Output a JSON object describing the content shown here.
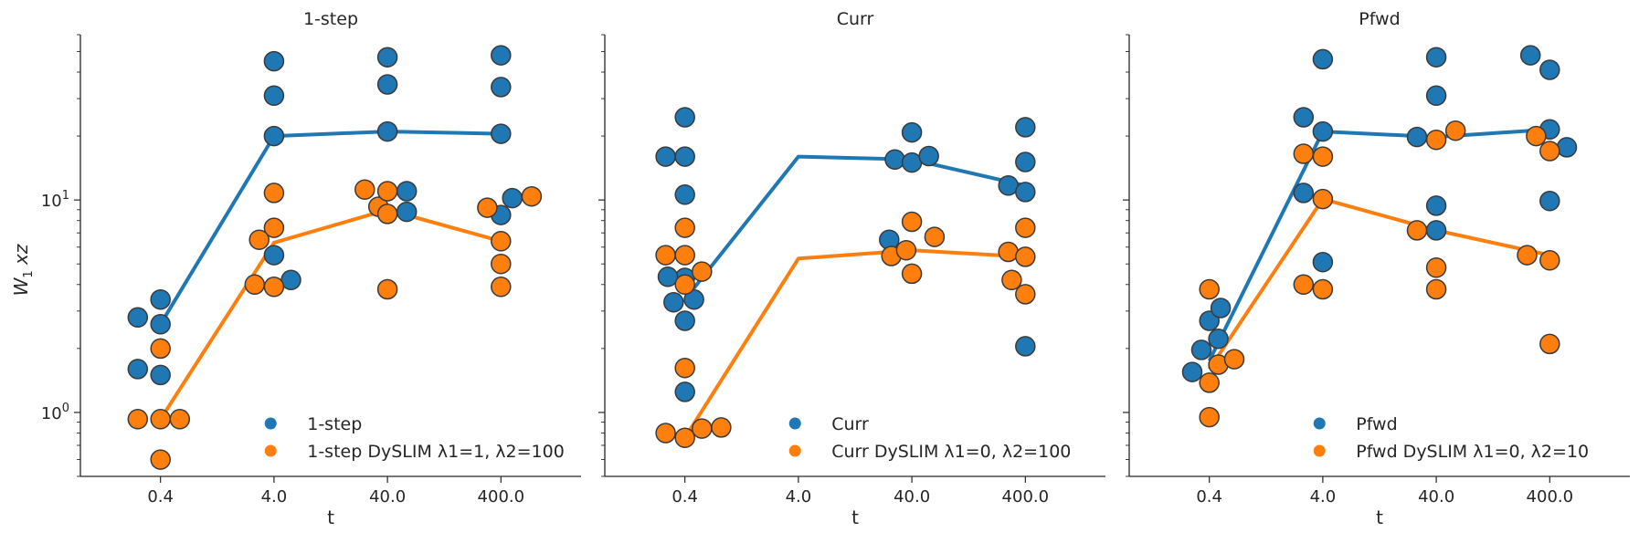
{
  "ylabel_main": "W",
  "ylabel_sub": "1",
  "ylabel_tail": " xz",
  "colors": {
    "blue": "#1f77b4",
    "orange": "#ff7f0e",
    "edge": "#3a3a3a",
    "axis": "#262626"
  },
  "chart_data": [
    {
      "type": "scatter",
      "title": "1-step",
      "xlabel": "t",
      "x_categories": [
        "0.4",
        "4.0",
        "40.0",
        "400.0"
      ],
      "y_scale": "log",
      "ylim": [
        0.5,
        60
      ],
      "y_ticks": [
        {
          "value": 1,
          "base": "10",
          "exp": "0"
        },
        {
          "value": 10,
          "base": "10",
          "exp": "1"
        }
      ],
      "legend_position": "lower-right",
      "series": [
        {
          "name": "1-step",
          "color": "#1f77b4",
          "points": [
            [
              -0.2,
              2.8
            ],
            [
              -0.2,
              1.6
            ],
            [
              0,
              3.4
            ],
            [
              0,
              2.6
            ],
            [
              0,
              1.5
            ],
            [
              1,
              45
            ],
            [
              1,
              31
            ],
            [
              1,
              20
            ],
            [
              1,
              5.5
            ],
            [
              1.15,
              4.2
            ],
            [
              2,
              47
            ],
            [
              2,
              35
            ],
            [
              2,
              21
            ],
            [
              2.17,
              11
            ],
            [
              2.17,
              8.8
            ],
            [
              3,
              48
            ],
            [
              3,
              34
            ],
            [
              3,
              20.5
            ],
            [
              3,
              8.5
            ],
            [
              3.1,
              10.2
            ]
          ],
          "line": [
            [
              0,
              2.6
            ],
            [
              1,
              20
            ],
            [
              2,
              21
            ],
            [
              3,
              20.5
            ]
          ]
        },
        {
          "name": "1-step DySLIM λ1=1, λ2=100",
          "color": "#ff7f0e",
          "points": [
            [
              -0.2,
              0.93
            ],
            [
              0,
              2.0
            ],
            [
              0,
              0.93
            ],
            [
              0,
              0.6
            ],
            [
              0.17,
              0.93
            ],
            [
              1,
              10.8
            ],
            [
              1,
              7.4
            ],
            [
              0.87,
              6.5
            ],
            [
              0.83,
              4.0
            ],
            [
              1,
              3.9
            ],
            [
              1.8,
              11.2
            ],
            [
              1.92,
              9.3
            ],
            [
              2,
              11
            ],
            [
              2,
              8.6
            ],
            [
              2,
              3.8
            ],
            [
              2.88,
              9.2
            ],
            [
              3,
              6.4
            ],
            [
              3,
              5.0
            ],
            [
              3,
              3.9
            ],
            [
              3.27,
              10.4
            ]
          ],
          "line": [
            [
              0,
              0.93
            ],
            [
              1,
              6.3
            ],
            [
              2,
              9.0
            ],
            [
              3,
              6.4
            ]
          ]
        }
      ]
    },
    {
      "type": "scatter",
      "title": "Curr",
      "xlabel": "t",
      "x_categories": [
        "0.4",
        "4.0",
        "40.0",
        "400.0"
      ],
      "y_scale": "log",
      "ylim": [
        0.5,
        60
      ],
      "legend_position": "lower-right",
      "series": [
        {
          "name": "Curr",
          "color": "#1f77b4",
          "points": [
            [
              -0.1,
              3.3
            ],
            [
              0,
              4.3
            ],
            [
              0.08,
              3.4
            ],
            [
              0,
              2.7
            ],
            [
              0,
              1.25
            ],
            [
              -0.17,
              16
            ],
            [
              0,
              16
            ],
            [
              0,
              24.5
            ],
            [
              0,
              10.6
            ],
            [
              -0.15,
              4.35
            ],
            [
              1.85,
              15.5
            ],
            [
              2,
              15
            ],
            [
              2,
              20.8
            ],
            [
              2.15,
              16.1
            ],
            [
              1.8,
              6.5
            ],
            [
              2.85,
              11.7
            ],
            [
              3,
              22
            ],
            [
              3,
              15.1
            ],
            [
              3,
              10.9
            ],
            [
              3,
              2.05
            ]
          ],
          "line": [
            [
              0,
              3.4
            ],
            [
              1,
              16
            ],
            [
              2,
              15.5
            ],
            [
              3,
              11.7
            ]
          ]
        },
        {
          "name": "Curr DySLIM λ1=0, λ2=100",
          "color": "#ff7f0e",
          "points": [
            [
              -0.17,
              0.8
            ],
            [
              0,
              0.76
            ],
            [
              0,
              1.62
            ],
            [
              0.15,
              0.84
            ],
            [
              0.32,
              0.85
            ],
            [
              -0.17,
              5.5
            ],
            [
              0,
              5.5
            ],
            [
              0,
              7.4
            ],
            [
              0,
              4.0
            ],
            [
              0.15,
              4.6
            ],
            [
              1.82,
              5.45
            ],
            [
              1.95,
              5.8
            ],
            [
              2,
              7.9
            ],
            [
              2,
              4.5
            ],
            [
              2.2,
              6.7
            ],
            [
              2.85,
              5.7
            ],
            [
              2.88,
              4.2
            ],
            [
              3,
              7.4
            ],
            [
              3,
              5.4
            ],
            [
              3,
              3.6
            ]
          ],
          "line": [
            [
              0,
              0.76
            ],
            [
              1,
              5.3
            ],
            [
              2,
              5.8
            ],
            [
              3,
              5.4
            ]
          ]
        }
      ]
    },
    {
      "type": "scatter",
      "title": "Pfwd",
      "xlabel": "t",
      "x_categories": [
        "0.4",
        "4.0",
        "40.0",
        "400.0"
      ],
      "y_scale": "log",
      "ylim": [
        0.5,
        60
      ],
      "legend_position": "lower-right",
      "series": [
        {
          "name": "Pfwd",
          "color": "#1f77b4",
          "points": [
            [
              -0.15,
              1.55
            ],
            [
              -0.07,
              1.97
            ],
            [
              0,
              2.7
            ],
            [
              0.08,
              2.22
            ],
            [
              0.1,
              3.1
            ],
            [
              1,
              46
            ],
            [
              0.83,
              24.5
            ],
            [
              1,
              21
            ],
            [
              0.83,
              10.8
            ],
            [
              1,
              5.1
            ],
            [
              2,
              47
            ],
            [
              2,
              31
            ],
            [
              1.83,
              19.8
            ],
            [
              2,
              9.4
            ],
            [
              2,
              7.2
            ],
            [
              2.83,
              48
            ],
            [
              3,
              41
            ],
            [
              3,
              9.9
            ],
            [
              3,
              21.5
            ],
            [
              3.15,
              17.7
            ]
          ],
          "line": [
            [
              0,
              1.75
            ],
            [
              1,
              21
            ],
            [
              2,
              19.8
            ],
            [
              3,
              21.5
            ]
          ]
        },
        {
          "name": "Pfwd DySLIM λ1=0, λ2=10",
          "color": "#ff7f0e",
          "points": [
            [
              0,
              3.8
            ],
            [
              0,
              1.38
            ],
            [
              0,
              0.95
            ],
            [
              0.08,
              1.68
            ],
            [
              0.22,
              1.78
            ],
            [
              0.83,
              16.5
            ],
            [
              1,
              16
            ],
            [
              1,
              10.1
            ],
            [
              0.83,
              4.0
            ],
            [
              1,
              3.8
            ],
            [
              1.83,
              7.2
            ],
            [
              2,
              19.2
            ],
            [
              2.17,
              21.2
            ],
            [
              2,
              4.8
            ],
            [
              2,
              3.8
            ],
            [
              2.88,
              20
            ],
            [
              3,
              17
            ],
            [
              2.8,
              5.5
            ],
            [
              3,
              5.2
            ],
            [
              3,
              2.1
            ]
          ],
          "line": [
            [
              0,
              1.6
            ],
            [
              1,
              10.1
            ],
            [
              2,
              7.2
            ],
            [
              3,
              5.5
            ]
          ]
        }
      ]
    }
  ]
}
